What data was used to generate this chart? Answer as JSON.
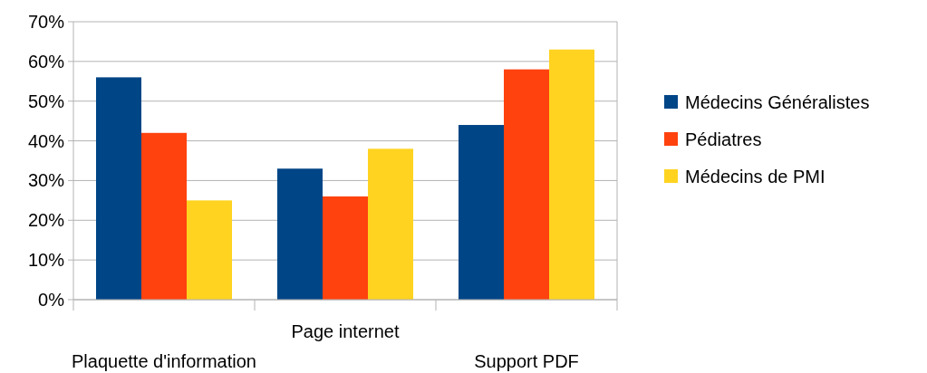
{
  "chart_data": {
    "type": "bar",
    "categories": [
      "Plaquette d'information",
      "Page internet",
      "Support PDF"
    ],
    "series": [
      {
        "name": "Médecins Généralistes",
        "color": "#004586",
        "values": [
          56,
          33,
          44
        ]
      },
      {
        "name": "Pédiatres",
        "color": "#ff420e",
        "values": [
          42,
          26,
          58
        ]
      },
      {
        "name": "Médecins de PMI",
        "color": "#ffd320",
        "values": [
          25,
          38,
          63
        ]
      }
    ],
    "ylim": [
      0,
      70
    ],
    "yticks": [
      {
        "value": 0,
        "label": "0%"
      },
      {
        "value": 10,
        "label": "10%"
      },
      {
        "value": 20,
        "label": "20%"
      },
      {
        "value": 30,
        "label": "30%"
      },
      {
        "value": 40,
        "label": "40%"
      },
      {
        "value": 50,
        "label": "50%"
      },
      {
        "value": 60,
        "label": "60%"
      },
      {
        "value": 70,
        "label": "70%"
      }
    ],
    "grid": "y",
    "legend": "right"
  }
}
